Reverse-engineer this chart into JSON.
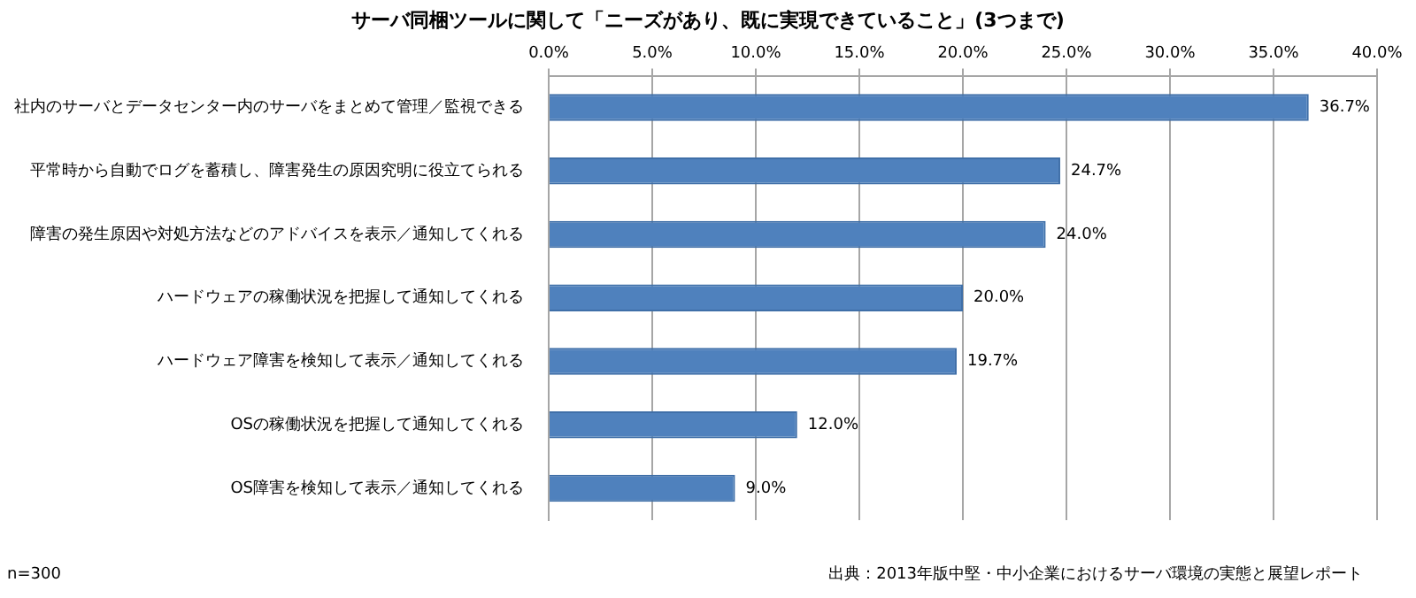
{
  "chart_data": {
    "type": "bar",
    "orientation": "horizontal",
    "title": "サーバ同梱ツールに関して「ニーズがあり、既に実現できていること」(3つまで)",
    "categories": [
      "社内のサーバとデータセンター内のサーバをまとめて管理／監視できる",
      "平常時から自動でログを蓄積し、障害発生の原因究明に役立てられる",
      "障害の発生原因や対処方法などのアドバイスを表示／通知してくれる",
      "ハードウェアの稼働状況を把握して通知してくれる",
      "ハードウェア障害を検知して表示／通知してくれる",
      "OSの稼働状況を把握して通知してくれる",
      "OS障害を検知して表示／通知してくれる"
    ],
    "values": [
      36.7,
      24.7,
      24.0,
      20.0,
      19.7,
      12.0,
      9.0
    ],
    "value_labels": [
      "36.7%",
      "24.7%",
      "24.0%",
      "20.0%",
      "19.7%",
      "12.0%",
      "9.0%"
    ],
    "color": "#4f81bd",
    "xlim": [
      0,
      40
    ],
    "xticks": [
      {
        "value": 0,
        "label": "0.0%"
      },
      {
        "value": 5,
        "label": "5.0%"
      },
      {
        "value": 10,
        "label": "10.0%"
      },
      {
        "value": 15,
        "label": "15.0%"
      },
      {
        "value": 20,
        "label": "20.0%"
      },
      {
        "value": 25,
        "label": "25.0%"
      },
      {
        "value": 30,
        "label": "30.0%"
      },
      {
        "value": 35,
        "label": "35.0%"
      },
      {
        "value": 40,
        "label": "40.0%"
      }
    ],
    "grid": "x",
    "annotations": [
      "n=300",
      "出典：2013年版中堅・中小企業におけるサーバ環境の実態と展望レポート"
    ]
  }
}
